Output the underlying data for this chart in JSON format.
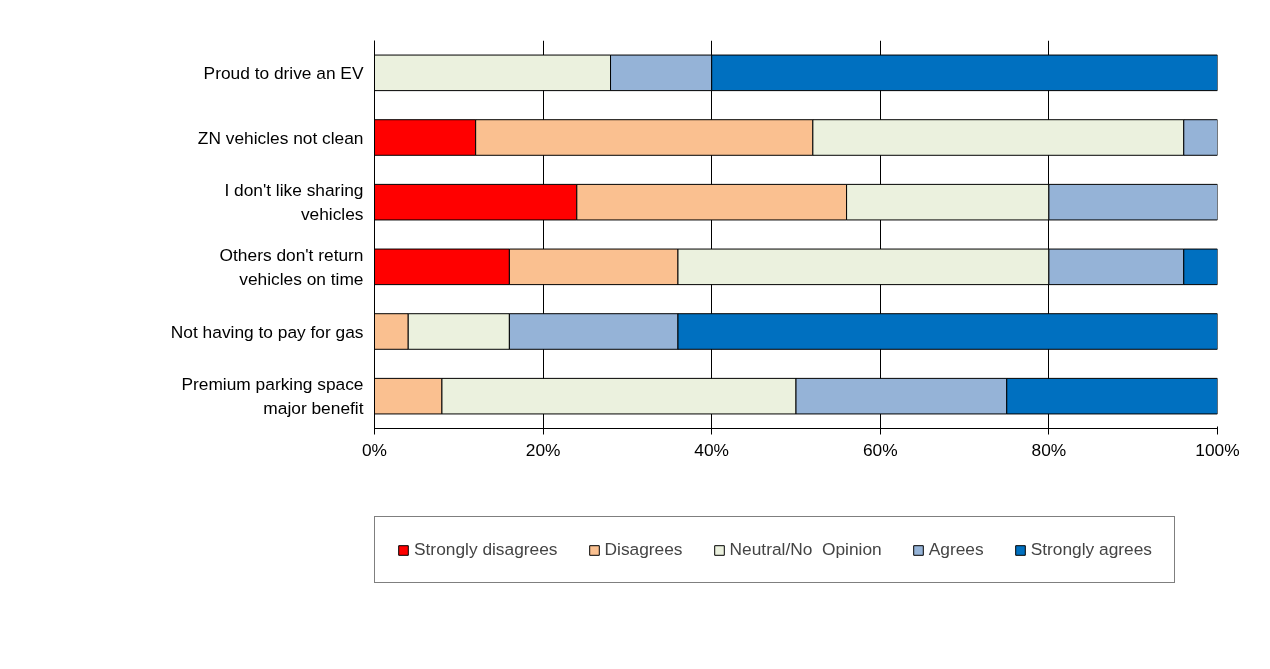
{
  "chart_data": {
    "type": "bar",
    "orientation": "horizontal",
    "stacked": true,
    "categories": [
      "Proud to drive an EV",
      "ZN vehicles not clean",
      "I don't like sharing vehicles",
      "Others don't return vehicles on time",
      "Not having to pay for gas",
      "Premium parking space major benefit"
    ],
    "series": [
      {
        "name": "Strongly disagrees",
        "color": "#ff0000",
        "values": [
          null,
          12,
          24,
          16,
          null,
          null
        ]
      },
      {
        "name": "Disagrees",
        "color": "#fac090",
        "values": [
          null,
          40,
          32,
          20,
          4,
          8
        ]
      },
      {
        "name": "Neutral/No  Opinion",
        "color": "#ebf1de",
        "values": [
          28,
          44,
          24,
          44,
          12,
          42
        ]
      },
      {
        "name": "Agrees",
        "color": "#95b3d7",
        "values": [
          12,
          4,
          20,
          16,
          20,
          25
        ]
      },
      {
        "name": "Strongly agrees",
        "color": "#0070c0",
        "values": [
          60,
          null,
          null,
          4,
          64,
          25
        ]
      }
    ],
    "xlim": [
      0,
      100
    ],
    "xticks": [
      {
        "value": 0,
        "label": "0%"
      },
      {
        "value": 20,
        "label": "20%"
      },
      {
        "value": 40,
        "label": "40%"
      },
      {
        "value": 60,
        "label": "60%"
      },
      {
        "value": 80,
        "label": "80%"
      },
      {
        "value": 100,
        "label": "100%"
      }
    ],
    "grid": "x",
    "legend": "bottom"
  }
}
